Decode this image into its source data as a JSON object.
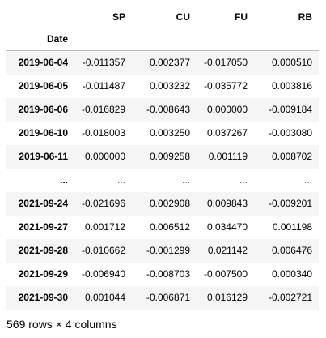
{
  "dataframe": {
    "columns": [
      "SP",
      "CU",
      "FU",
      "RB"
    ],
    "index_name": "Date",
    "rows": [
      {
        "index": "2019-06-04",
        "values": [
          "-0.011357",
          "0.002377",
          "-0.017050",
          "0.000510"
        ]
      },
      {
        "index": "2019-06-05",
        "values": [
          "-0.011487",
          "0.003232",
          "-0.035772",
          "0.003816"
        ]
      },
      {
        "index": "2019-06-06",
        "values": [
          "-0.016829",
          "-0.008643",
          "0.000000",
          "-0.009184"
        ]
      },
      {
        "index": "2019-06-10",
        "values": [
          "-0.018003",
          "0.003250",
          "0.037267",
          "-0.003080"
        ]
      },
      {
        "index": "2019-06-11",
        "values": [
          "0.000000",
          "0.009258",
          "0.001119",
          "0.008702"
        ]
      },
      {
        "index": "...",
        "values": [
          "...",
          "...",
          "...",
          "..."
        ]
      },
      {
        "index": "2021-09-24",
        "values": [
          "-0.021696",
          "0.002908",
          "0.009843",
          "-0.009201"
        ]
      },
      {
        "index": "2021-09-27",
        "values": [
          "0.001712",
          "0.006512",
          "0.034470",
          "0.001198"
        ]
      },
      {
        "index": "2021-09-28",
        "values": [
          "-0.010662",
          "-0.001299",
          "0.021142",
          "0.006476"
        ]
      },
      {
        "index": "2021-09-29",
        "values": [
          "-0.006940",
          "-0.008703",
          "-0.007500",
          "0.000340"
        ]
      },
      {
        "index": "2021-09-30",
        "values": [
          "0.001044",
          "-0.006871",
          "0.016129",
          "-0.002721"
        ]
      }
    ],
    "shape_note": "569 rows × 4 columns"
  },
  "colors": {
    "stripe": "#f5f5f5",
    "header_rule": "#bdbdbd",
    "ellipsis_text": "#6b6b6b"
  }
}
